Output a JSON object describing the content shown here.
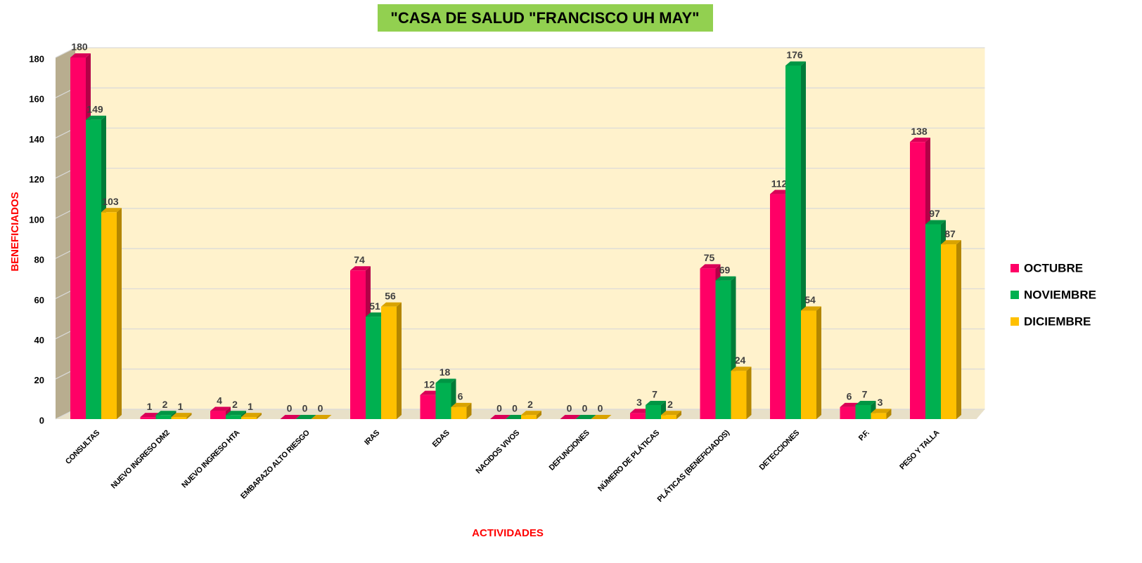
{
  "chart_data": {
    "type": "bar3d",
    "title": "\"CASA DE SALUD \"FRANCISCO UH MAY\"",
    "x_label": "ACTIVIDADES",
    "y_label": "BENEFICIADOS",
    "categories": [
      "CONSULTAS",
      "NUEVO INGRESO DM2",
      "NUEVO INGRESO HTA",
      "EMBARAZO ALTO RIESGO",
      "IRAS",
      "EDAS",
      "NACIDOS VIVOS",
      "DEFUNCIONES",
      "NÚMERO DE PLÁTICAS",
      "PLÁTICAS (BENEFICIADOS)",
      "DETECCIONES",
      "P.F.",
      "PESO Y TALLA"
    ],
    "series": [
      {
        "name": "OCTUBRE",
        "color": "#ff0066",
        "values": [
          180,
          1,
          4,
          0,
          74,
          12,
          0,
          0,
          3,
          75,
          112,
          6,
          138
        ]
      },
      {
        "name": "NOVIEMBRE",
        "color": "#00b050",
        "values": [
          149,
          2,
          2,
          0,
          51,
          18,
          0,
          0,
          7,
          69,
          176,
          7,
          97
        ]
      },
      {
        "name": "DICIEMBRE",
        "color": "#ffc000",
        "values": [
          103,
          1,
          1,
          0,
          56,
          6,
          2,
          0,
          2,
          24,
          54,
          3,
          87
        ]
      }
    ],
    "ylim": [
      0,
      180
    ],
    "yticks": [
      0,
      20,
      40,
      60,
      80,
      100,
      120,
      140,
      160,
      180
    ],
    "grid": true,
    "legend": "right"
  }
}
